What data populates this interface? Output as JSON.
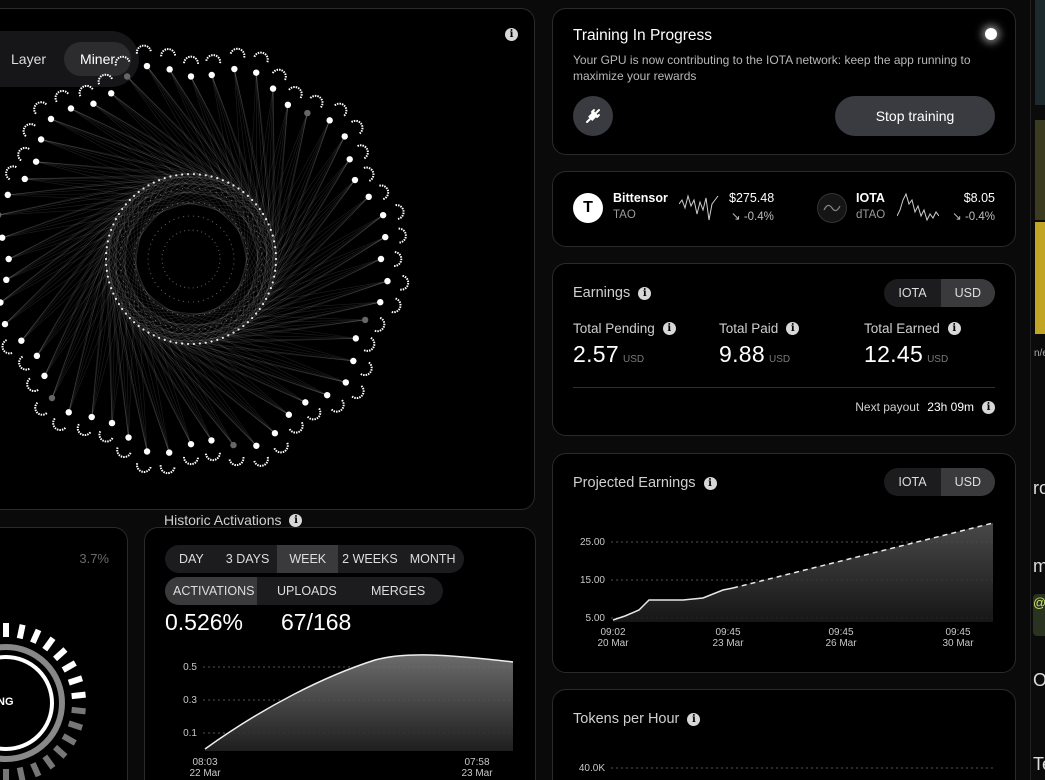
{
  "viz": {
    "tabs": [
      {
        "label": "Layer",
        "active": false
      },
      {
        "label": "Miner",
        "active": true
      }
    ]
  },
  "training": {
    "title": "Training In Progress",
    "description": "Your GPU is now contributing to the IOTA network: keep the app running to maximize your rewards",
    "stop_label": "Stop training",
    "icon": "plug-icon"
  },
  "tickers": [
    {
      "name": "Bittensor",
      "symbol": "TAO",
      "price": "$275.48",
      "change": "↘ -0.4%"
    },
    {
      "name": "IOTA",
      "symbol": "dTAO",
      "price": "$8.05",
      "change": "↘ -0.4%"
    }
  ],
  "earnings": {
    "title": "Earnings",
    "currency_options": [
      "IOTA",
      "USD"
    ],
    "selected_currency": "USD",
    "stats": [
      {
        "label": "Total Pending",
        "value": "2.57",
        "unit": "USD"
      },
      {
        "label": "Total Paid",
        "value": "9.88",
        "unit": "USD"
      },
      {
        "label": "Total Earned",
        "value": "12.45",
        "unit": "USD"
      }
    ],
    "next_payout_label": "Next payout",
    "next_payout_value": "23h 09m"
  },
  "projected": {
    "title": "Projected Earnings",
    "currency_options": [
      "IOTA",
      "USD"
    ],
    "selected_currency": "USD",
    "y_ticks": [
      "25.00",
      "15.00",
      "5.00"
    ],
    "x_ticks": [
      {
        "time": "09:02",
        "date": "20 Mar"
      },
      {
        "time": "09:45",
        "date": "23 Mar"
      },
      {
        "time": "09:45",
        "date": "26 Mar"
      },
      {
        "time": "09:45",
        "date": "30 Mar"
      }
    ]
  },
  "tokens": {
    "title": "Tokens per Hour",
    "y_ticks": [
      "40.0K"
    ]
  },
  "left_gauge": {
    "percent": "3.7%",
    "label": "NG"
  },
  "historic": {
    "title": "Historic Activations",
    "ranges": [
      "DAY",
      "3 DAYS",
      "WEEK",
      "2 WEEKS",
      "MONTH"
    ],
    "selected_range": "WEEK",
    "metrics": [
      "ACTIVATIONS",
      "UPLOADS",
      "MERGES"
    ],
    "selected_metric": "ACTIVATIONS",
    "value_pct": "0.526%",
    "value_ratio": "67/168",
    "y_ticks": [
      "0.5",
      "0.3",
      "0.1"
    ],
    "x_ticks": [
      {
        "time": "08:03",
        "date": "22 Mar"
      },
      {
        "time": "07:58",
        "date": "23 Mar"
      }
    ]
  },
  "right_edge": {
    "letters": [
      "ro",
      "m",
      "@",
      "O",
      "Te"
    ],
    "snippet": "n/e"
  }
}
